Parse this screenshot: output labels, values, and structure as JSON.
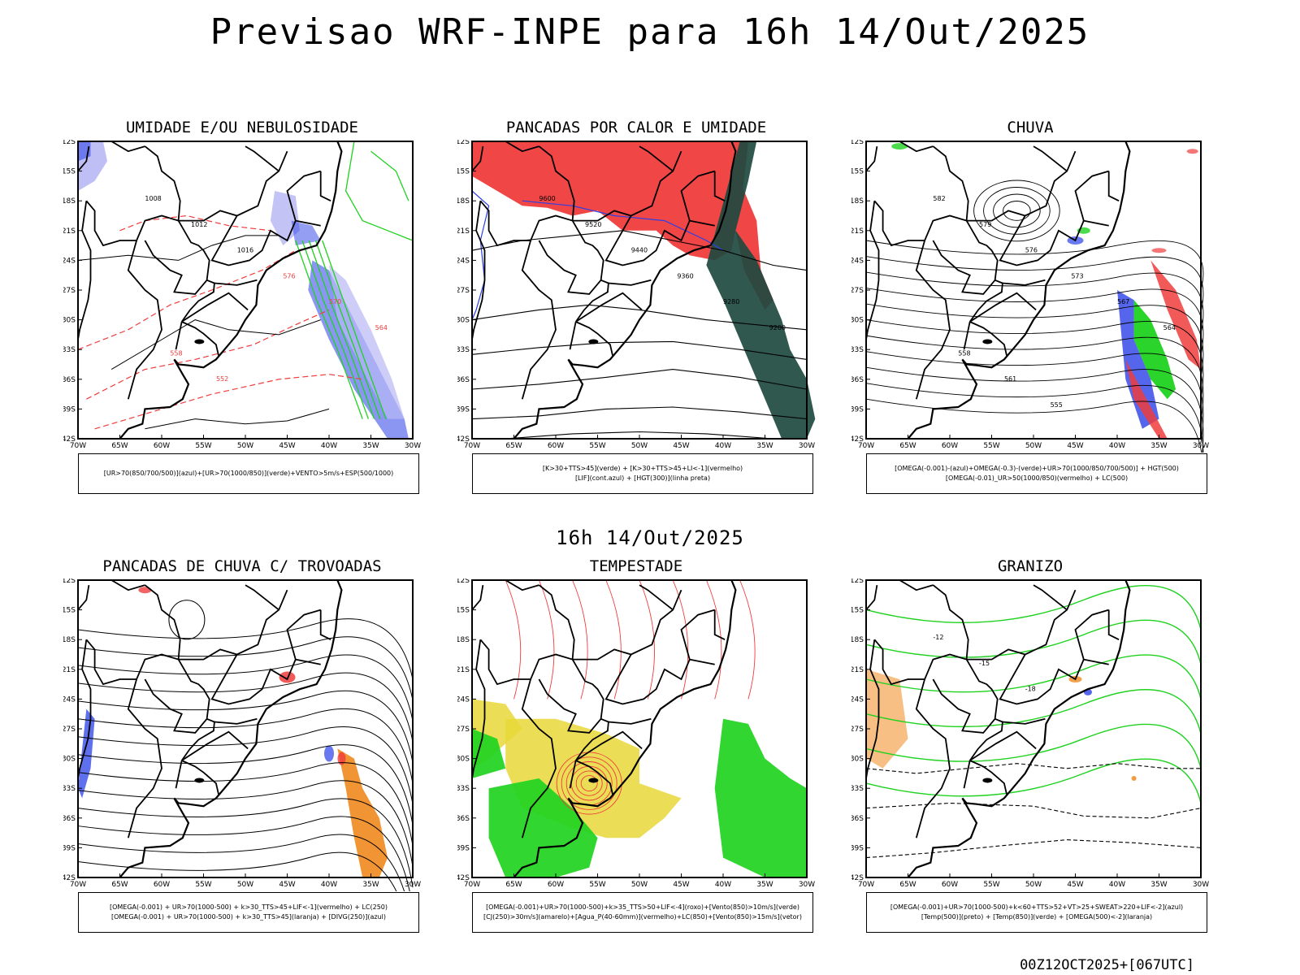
{
  "header": {
    "title": "Previsao WRF-INPE  para 16h 14/Out/2025"
  },
  "middle": {
    "title": "16h 14/Out/2025"
  },
  "footer": {
    "run": "00Z12OCT2025+[067UTC]"
  },
  "axes": {
    "lat_labels": [
      "12S",
      "15S",
      "18S",
      "21S",
      "24S",
      "27S",
      "30S",
      "33S",
      "36S",
      "39S",
      "42S"
    ],
    "lon_labels": [
      "70W",
      "65W",
      "60W",
      "55W",
      "50W",
      "45W",
      "40W",
      "35W",
      "30W"
    ]
  },
  "colors": {
    "red": "#f03c3c",
    "green": "#1fd21f",
    "blue": "#2a40e8",
    "lightblue": "#b8b8f5",
    "orange": "#f08a1e",
    "yellow": "#e8d838",
    "darkteal": "#1f4a40",
    "purple": "#9966cc"
  },
  "panels": [
    {
      "title": "UMIDADE E/OU NEBULOSIDADE",
      "caption": [
        "[UR>70(850/700/500)](azul)+[UR>70(1000/850)](verde)+VENTO>5m/s+ESP(500/1000)"
      ],
      "contour_labels": [
        "1008",
        "1012",
        "1016",
        "576",
        "570",
        "564",
        "558",
        "552"
      ]
    },
    {
      "title": "PANCADAS POR CALOR E UMIDADE",
      "caption": [
        "[K>30+TTS>45](verde) + [K>30+TTS>45+LI<-1](vermelho)",
        "[LIF](cont.azul) + [HGT(300)](linha preta)"
      ],
      "contour_labels": [
        "9600",
        "9520",
        "9440",
        "9360",
        "9280",
        "9200"
      ]
    },
    {
      "title": "CHUVA",
      "caption": [
        "[OMEGA(-0.001)-(azul)+OMEGA(-0.3)-(verde)+UR>70(1000/850/700/500)] + HGT(500)",
        "[OMEGA(-0.01)_UR>50(1000/850)(vermelho) + LC(500)"
      ],
      "contour_labels": [
        "582",
        "579",
        "576",
        "573",
        "567",
        "564",
        "558",
        "561",
        "555"
      ]
    },
    {
      "title": "PANCADAS DE CHUVA C/ TROVOADAS",
      "caption": [
        "[OMEGA(-0.001) + UR>70(1000-500) + k>30_TTS>45+LIF<-1](vermelho) + LC(250)",
        "[OMEGA(-0.001) + UR>70(1000-500) + k>30_TTS>45](laranja) + [DIVG(250)](azul)"
      ],
      "contour_labels": []
    },
    {
      "title": "TEMPESTADE",
      "caption": [
        "[OMEGA(-0.001)+UR>70(1000-500)+k>35_TTS>50+LIF<-4](roxo)+[Vento(850)>10m/s](verde)",
        "[CJ(250)>30m/s](amarelo)+[Agua_P(40-60mm)](vermelho)+LC(850)+[Vento(850)>15m/s](vetor)"
      ],
      "contour_labels": []
    },
    {
      "title": "GRANIZO",
      "caption": [
        "[OMEGA(-0.001)+UR>70(1000-500)+k<60+TTS>52+VT>25+SWEAT>220+LIF<-2](azul)",
        "[Temp(500)](preto) + [Temp(850)](verde) + [OMEGA(500)<-2](laranja)"
      ],
      "contour_labels": [
        "-12",
        "-15",
        "-18"
      ]
    }
  ]
}
